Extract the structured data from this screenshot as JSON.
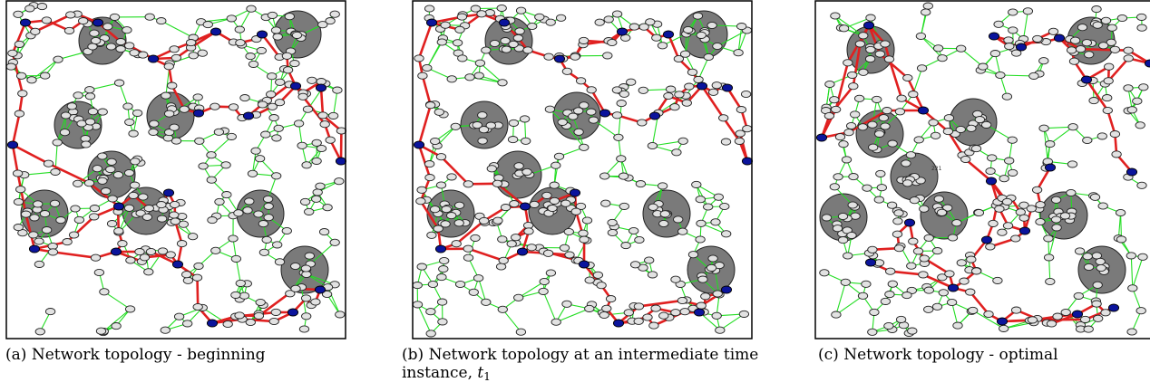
{
  "panels": [
    {
      "id": "a",
      "caption_prefix": "(a)",
      "caption_text": "Network topology - beginning",
      "seed": 11,
      "obstacles": [
        [
          107,
          45
        ],
        [
          322,
          38
        ],
        [
          80,
          138
        ],
        [
          182,
          128
        ],
        [
          117,
          193
        ],
        [
          43,
          236
        ],
        [
          155,
          233
        ],
        [
          281,
          236
        ],
        [
          330,
          298
        ]
      ],
      "blue_nodes": [
        [
          22,
          25
        ],
        [
          102,
          25
        ],
        [
          232,
          35
        ],
        [
          163,
          65
        ],
        [
          283,
          38
        ],
        [
          320,
          95
        ],
        [
          8,
          160
        ],
        [
          348,
          97
        ],
        [
          213,
          125
        ],
        [
          268,
          128
        ],
        [
          125,
          228
        ],
        [
          180,
          213
        ],
        [
          370,
          178
        ],
        [
          32,
          275
        ],
        [
          190,
          292
        ],
        [
          122,
          278
        ],
        [
          228,
          357
        ],
        [
          317,
          345
        ],
        [
          347,
          320
        ]
      ]
    },
    {
      "id": "b",
      "caption_prefix": "(b)",
      "caption_text": "Network topology at an intermediate time instance, ",
      "caption_var": "t",
      "caption_sub": "1",
      "seed": 23,
      "obstacles": [
        [
          107,
          45
        ],
        [
          322,
          38
        ],
        [
          80,
          138
        ],
        [
          182,
          128
        ],
        [
          117,
          193
        ],
        [
          43,
          236
        ],
        [
          155,
          233
        ],
        [
          281,
          236
        ],
        [
          330,
          298
        ]
      ],
      "blue_nodes": [
        [
          22,
          25
        ],
        [
          102,
          25
        ],
        [
          232,
          35
        ],
        [
          163,
          65
        ],
        [
          283,
          38
        ],
        [
          320,
          95
        ],
        [
          8,
          160
        ],
        [
          348,
          97
        ],
        [
          213,
          125
        ],
        [
          268,
          128
        ],
        [
          125,
          228
        ],
        [
          180,
          213
        ],
        [
          370,
          178
        ],
        [
          32,
          275
        ],
        [
          190,
          292
        ],
        [
          122,
          278
        ],
        [
          228,
          357
        ],
        [
          317,
          345
        ],
        [
          347,
          320
        ]
      ]
    },
    {
      "id": "c",
      "caption_prefix": "(c)",
      "caption_text": "Network topology - optimal",
      "seed": 37,
      "obstacles": [
        [
          62,
          55
        ],
        [
          305,
          45
        ],
        [
          72,
          148
        ],
        [
          175,
          135
        ],
        [
          110,
          195
        ],
        [
          32,
          240
        ],
        [
          143,
          238
        ],
        [
          275,
          238
        ],
        [
          317,
          298
        ]
      ],
      "blue_nodes": [
        [
          60,
          28
        ],
        [
          198,
          40
        ],
        [
          228,
          52
        ],
        [
          270,
          42
        ],
        [
          300,
          88
        ],
        [
          8,
          152
        ],
        [
          370,
          70
        ],
        [
          120,
          122
        ],
        [
          195,
          200
        ],
        [
          260,
          185
        ],
        [
          350,
          190
        ],
        [
          105,
          246
        ],
        [
          190,
          265
        ],
        [
          232,
          255
        ],
        [
          62,
          290
        ],
        [
          153,
          318
        ],
        [
          207,
          355
        ],
        [
          290,
          347
        ],
        [
          330,
          340
        ]
      ],
      "node_label": "221"
    }
  ]
}
